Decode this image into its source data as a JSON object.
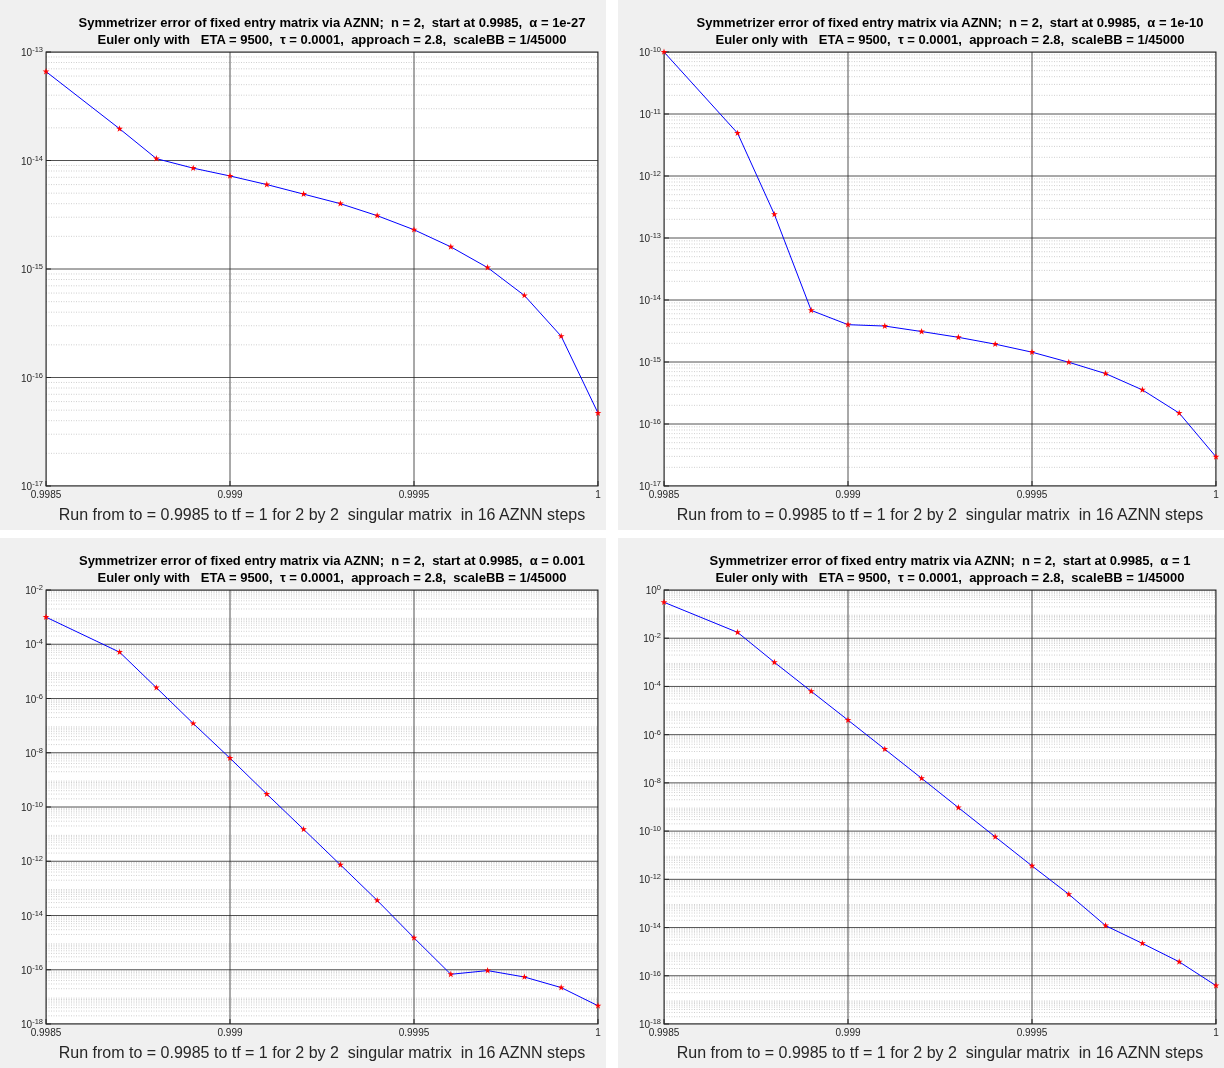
{
  "chart_data": [
    {
      "type": "line",
      "title": "Symmetrizer error of fixed entry matrix via AZNN;  n = 2,  start at 0.9985,  α = 1e-27",
      "subtitle": "Euler only with   ETA = 9500,  τ = 0.0001,  approach = 2.8,  scaleBB = 1/45000",
      "xlabel": "Run from to = 0.9985 to tf = 1 for 2 by 2  singular matrix  in 16 AZNN steps",
      "x": [
        0.9985,
        0.9987,
        0.9988,
        0.9989,
        0.999,
        0.9991,
        0.9992,
        0.9993,
        0.9994,
        0.9995,
        0.9996,
        0.9997,
        0.9998,
        0.9999,
        1
      ],
      "series": [
        {
          "color": "#0000ff",
          "values": [
            6.6e-14,
            1.96e-14,
            1.04e-14,
            8.5e-15,
            7.2e-15,
            6e-15,
            4.9e-15,
            4e-15,
            3.1e-15,
            2.3e-15,
            1.6e-15,
            1.03e-15,
            5.7e-16,
            2.4e-16,
            4.7e-17
          ]
        },
        {
          "type": "scatter",
          "marker": "star",
          "color": "#ff0000",
          "values": [
            6.6e-14,
            1.96e-14,
            1.04e-14,
            8.5e-15,
            7.2e-15,
            6e-15,
            4.9e-15,
            4e-15,
            3.1e-15,
            2.3e-15,
            1.6e-15,
            1.03e-15,
            5.7e-16,
            2.4e-16,
            4.7e-17
          ]
        }
      ],
      "log": true,
      "grid": true,
      "xlim": [
        0.9985,
        1
      ],
      "xticks": [
        0.9985,
        0.999,
        0.9995,
        1
      ],
      "ylim": [
        1e-17,
        1e-13
      ],
      "yticks": [
        {
          "value": 1e-17,
          "label": "10$^{-17}$"
        },
        {
          "value": 1e-16,
          "label": "10$^{-16}$"
        },
        {
          "value": 1e-15,
          "label": "10$^{-15}$"
        },
        {
          "value": 1e-14,
          "label": "10$^{-14}$"
        },
        {
          "value": 1e-13,
          "label": "10$^{-13}$"
        }
      ]
    },
    {
      "type": "line",
      "title": "Symmetrizer error of fixed entry matrix via AZNN;  n = 2,  start at 0.9985,  α = 1e-10",
      "subtitle": "Euler only with   ETA = 9500,  τ = 0.0001,  approach = 2.8,  scaleBB = 1/45000",
      "xlabel": "Run from to = 0.9985 to tf = 1 for 2 by 2  singular matrix  in 16 AZNN steps",
      "x": [
        0.9985,
        0.9987,
        0.9988,
        0.9989,
        0.999,
        0.9991,
        0.9992,
        0.9993,
        0.9994,
        0.9995,
        0.9996,
        0.9997,
        0.9998,
        0.9999,
        1
      ],
      "series": [
        {
          "color": "#0000ff",
          "values": [
            1e-10,
            4.9e-12,
            2.4e-13,
            6.8e-15,
            4e-15,
            3.8e-15,
            3.1e-15,
            2.5e-15,
            1.94e-15,
            1.44e-15,
            9.9e-16,
            6.5e-16,
            3.55e-16,
            1.5e-16,
            2.95e-17
          ]
        },
        {
          "type": "scatter",
          "marker": "star",
          "color": "#ff0000",
          "values": [
            1e-10,
            4.9e-12,
            2.4e-13,
            6.8e-15,
            4e-15,
            3.8e-15,
            3.1e-15,
            2.5e-15,
            1.94e-15,
            1.44e-15,
            9.9e-16,
            6.5e-16,
            3.55e-16,
            1.5e-16,
            2.95e-17
          ]
        }
      ],
      "log": true,
      "grid": true,
      "xlim": [
        0.9985,
        1
      ],
      "xticks": [
        0.9985,
        0.999,
        0.9995,
        1
      ],
      "ylim": [
        1e-17,
        1e-10
      ],
      "yticks": [
        {
          "value": 1e-17,
          "label": "10$^{-17}$"
        },
        {
          "value": 1e-16,
          "label": "10$^{-16}$"
        },
        {
          "value": 1e-15,
          "label": "10$^{-15}$"
        },
        {
          "value": 1e-14,
          "label": "10$^{-14}$"
        },
        {
          "value": 1e-13,
          "label": "10$^{-13}$"
        },
        {
          "value": 1e-12,
          "label": "10$^{-12}$"
        },
        {
          "value": 1e-11,
          "label": "10$^{-11}$"
        },
        {
          "value": 1e-10,
          "label": "10$^{-10}$"
        }
      ]
    },
    {
      "type": "line",
      "title": "Symmetrizer error of fixed entry matrix via AZNN;  n = 2,  start at 0.9985,  α = 0.001",
      "subtitle": "Euler only with   ETA = 9500,  τ = 0.0001,  approach = 2.8,  scaleBB = 1/45000",
      "xlabel": "Run from to = 0.9985 to tf = 1 for 2 by 2  singular matrix  in 16 AZNN steps",
      "x": [
        0.9985,
        0.9987,
        0.9988,
        0.9989,
        0.999,
        0.9991,
        0.9992,
        0.9993,
        0.9994,
        0.9995,
        0.9996,
        0.9997,
        0.9998,
        0.9999,
        1
      ],
      "series": [
        {
          "color": "#0000ff",
          "values": [
            0.001,
            5.1e-05,
            2.5e-06,
            1.2e-07,
            6.3e-09,
            3e-10,
            1.5e-11,
            7.4e-13,
            3.6e-14,
            1.5e-15,
            6.8e-17,
            9.3e-17,
            5.4e-17,
            2.2e-17,
            4.7e-18
          ]
        },
        {
          "type": "scatter",
          "marker": "star",
          "color": "#ff0000",
          "values": [
            0.001,
            5.1e-05,
            2.5e-06,
            1.2e-07,
            6.3e-09,
            3e-10,
            1.5e-11,
            7.4e-13,
            3.6e-14,
            1.5e-15,
            6.8e-17,
            9.3e-17,
            5.4e-17,
            2.2e-17,
            4.7e-18
          ]
        }
      ],
      "log": true,
      "grid": true,
      "xlim": [
        0.9985,
        1
      ],
      "xticks": [
        0.9985,
        0.999,
        0.9995,
        1
      ],
      "ylim": [
        1e-18,
        0.01
      ],
      "yticks": [
        {
          "value": 1e-18,
          "label": "10$^{-18}$"
        },
        {
          "value": 1e-16,
          "label": "10$^{-16}$"
        },
        {
          "value": 1e-14,
          "label": "10$^{-14}$"
        },
        {
          "value": 1e-12,
          "label": "10$^{-12}$"
        },
        {
          "value": 1e-10,
          "label": "10$^{-10}$"
        },
        {
          "value": 1e-08,
          "label": "10$^{-8}$"
        },
        {
          "value": 1e-06,
          "label": "10$^{-6}$"
        },
        {
          "value": 0.0001,
          "label": "10$^{-4}$"
        },
        {
          "value": 0.01,
          "label": "10$^{-2}$"
        }
      ]
    },
    {
      "type": "line",
      "title": "Symmetrizer error of fixed entry matrix via AZNN;  n = 2,  start at 0.9985,  α = 1",
      "subtitle": "Euler only with   ETA = 9500,  τ = 0.0001,  approach = 2.8,  scaleBB = 1/45000",
      "xlabel": "Run from to = 0.9985 to tf = 1 for 2 by 2  singular matrix  in 16 AZNN steps",
      "x": [
        0.9985,
        0.9987,
        0.9988,
        0.9989,
        0.999,
        0.9991,
        0.9992,
        0.9993,
        0.9994,
        0.9995,
        0.9996,
        0.9997,
        0.9998,
        0.9999,
        1
      ],
      "series": [
        {
          "color": "#0000ff",
          "values": [
            0.31,
            0.0175,
            0.001,
            6.3e-05,
            4e-06,
            2.5e-07,
            1.55e-08,
            9.4e-10,
            5.8e-11,
            3.6e-12,
            2.4e-13,
            1.2e-14,
            2.2e-15,
            3.8e-16,
            3.9e-17
          ]
        },
        {
          "type": "scatter",
          "marker": "star",
          "color": "#ff0000",
          "values": [
            0.31,
            0.0175,
            0.001,
            6.3e-05,
            4e-06,
            2.5e-07,
            1.55e-08,
            9.4e-10,
            5.8e-11,
            3.6e-12,
            2.4e-13,
            1.2e-14,
            2.2e-15,
            3.8e-16,
            3.9e-17
          ]
        }
      ],
      "log": true,
      "grid": true,
      "xlim": [
        0.9985,
        1
      ],
      "xticks": [
        0.9985,
        0.999,
        0.9995,
        1
      ],
      "ylim": [
        1e-18,
        1
      ],
      "yticks": [
        {
          "value": 1e-18,
          "label": "10$^{-18}$"
        },
        {
          "value": 1e-16,
          "label": "10$^{-16}$"
        },
        {
          "value": 1e-14,
          "label": "10$^{-14}$"
        },
        {
          "value": 1e-12,
          "label": "10$^{-12}$"
        },
        {
          "value": 1e-10,
          "label": "10$^{-10}$"
        },
        {
          "value": 1e-08,
          "label": "10$^{-8}$"
        },
        {
          "value": 1e-06,
          "label": "10$^{-6}$"
        },
        {
          "value": 0.0001,
          "label": "10$^{-4}$"
        },
        {
          "value": 0.01,
          "label": "10$^{-2}$"
        },
        {
          "value": 1,
          "label": "10$^{0}$"
        }
      ]
    }
  ]
}
